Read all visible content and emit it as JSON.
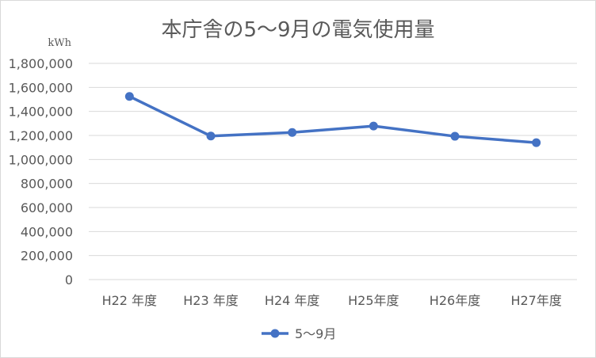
{
  "chart_data": {
    "type": "line",
    "title": "本庁舎の5～9月の電気使用量",
    "ylabel": "kWh",
    "xlabel": "",
    "categories": [
      "H22 年度",
      "H23 年度",
      "H24 年度",
      "H25年度",
      "H26年度",
      "H27年度"
    ],
    "series": [
      {
        "name": "5～9月",
        "values": [
          1525000,
          1195000,
          1225000,
          1278000,
          1193000,
          1140000
        ]
      }
    ],
    "ylim": [
      0,
      1800000
    ],
    "yticks": [
      "0",
      "200,000",
      "400,000",
      "600,000",
      "800,000",
      "1,000,000",
      "1,200,000",
      "1,400,000",
      "1,600,000",
      "1,800,000"
    ],
    "grid": true,
    "legend": "bottom",
    "colors": {
      "series": "#4472c4",
      "grid": "#d9d9d9",
      "text": "#595959"
    }
  }
}
